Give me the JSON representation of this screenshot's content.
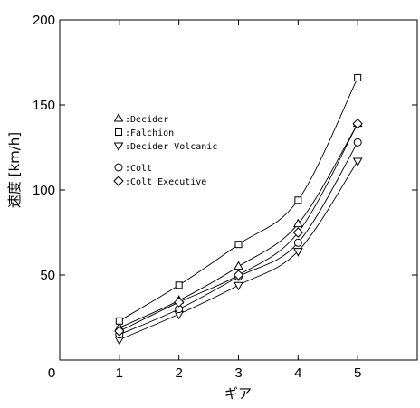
{
  "chart_data": {
    "type": "line",
    "xlabel": "ギア",
    "ylabel": "速度 [km/h]",
    "xlim": [
      0,
      6
    ],
    "ylim": [
      0,
      200
    ],
    "xticks": [
      "0",
      "1",
      "2",
      "3",
      "4",
      "5"
    ],
    "yticks": [
      "50",
      "100",
      "150",
      "200"
    ],
    "x": [
      1,
      2,
      3,
      4,
      5
    ],
    "series": [
      {
        "name": "Decider",
        "marker": "triangle-up",
        "values": [
          19,
          35,
          55,
          80,
          139
        ]
      },
      {
        "name": "Falchion",
        "marker": "square",
        "values": [
          23,
          44,
          68,
          94,
          166
        ]
      },
      {
        "name": "Decider Volcanic",
        "marker": "triangle-down",
        "values": [
          12,
          27,
          44,
          64,
          117
        ]
      },
      {
        "name": "Colt",
        "marker": "circle",
        "values": [
          15,
          30,
          49,
          69,
          128
        ]
      },
      {
        "name": "Colt Executive",
        "marker": "diamond",
        "values": [
          17,
          34,
          50,
          75,
          139
        ]
      }
    ],
    "legend_prefix": ":",
    "legend_position": "upper-left inside plot",
    "grid": false
  }
}
